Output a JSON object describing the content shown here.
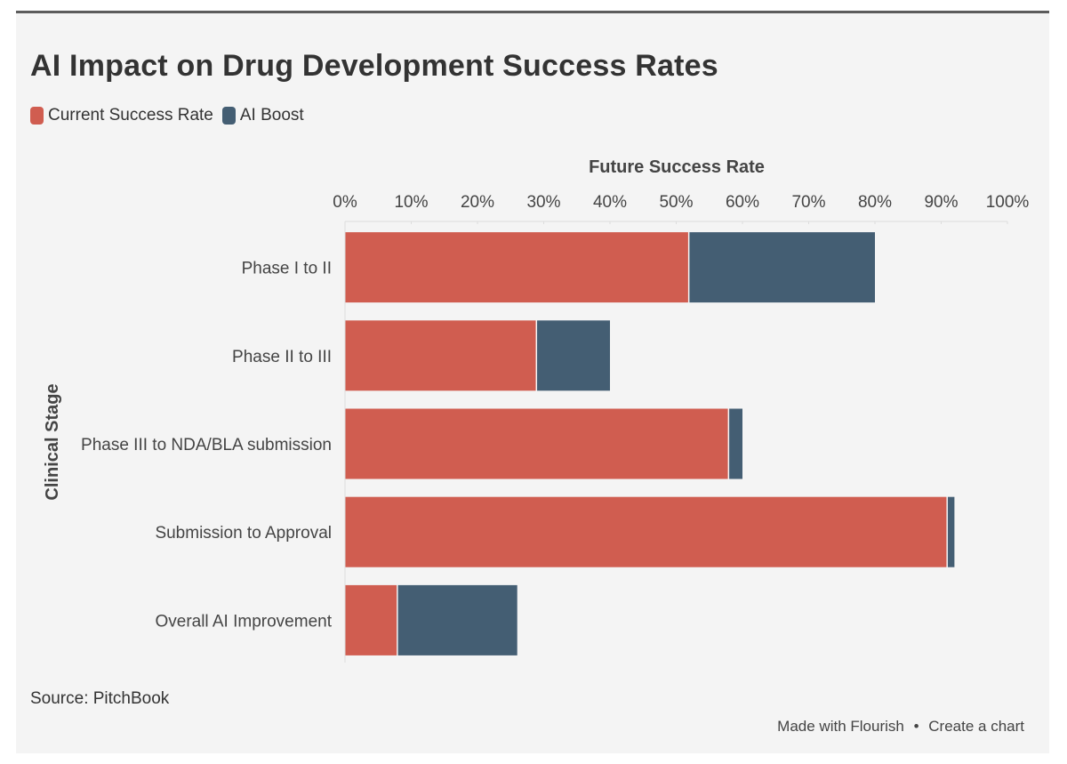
{
  "chart_data": {
    "type": "bar",
    "orientation": "horizontal",
    "stacked": true,
    "title": "AI Impact on Drug Development Success Rates",
    "xlabel": "Future Success Rate",
    "ylabel": "Clinical Stage",
    "xlim": [
      0,
      100
    ],
    "x_ticks": [
      "0%",
      "10%",
      "20%",
      "30%",
      "40%",
      "50%",
      "60%",
      "70%",
      "80%",
      "90%",
      "100%"
    ],
    "x_tick_values": [
      0,
      10,
      20,
      30,
      40,
      50,
      60,
      70,
      80,
      90,
      100
    ],
    "categories": [
      "Phase I to II",
      "Phase II to III",
      "Phase III to NDA/BLA submission",
      "Submission to Approval",
      "Overall AI Improvement"
    ],
    "series": [
      {
        "name": "Current Success Rate",
        "color": "#d05d50",
        "values": [
          52,
          29,
          58,
          91,
          8
        ]
      },
      {
        "name": "AI Boost",
        "color": "#445e73",
        "values": [
          28,
          11,
          2,
          1,
          18
        ]
      }
    ],
    "legend_position": "top-left",
    "grid": true
  },
  "source": "Source: PitchBook",
  "footer": {
    "made_with": "Made with Flourish",
    "separator": "•",
    "create": "Create a chart"
  }
}
